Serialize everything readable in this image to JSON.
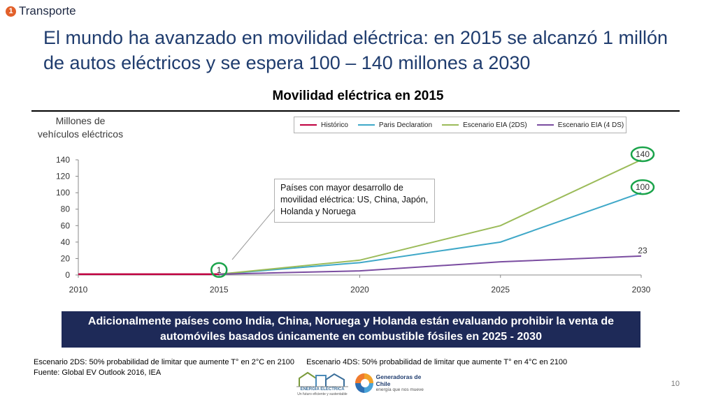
{
  "section": {
    "number": "1",
    "label": "Transporte"
  },
  "title": "El mundo ha avanzado en movilidad eléctrica: en 2015 se alcanzó 1 millón de autos eléctricos y se espera 100 – 140 millones a 2030",
  "chart_data": {
    "type": "line",
    "title": "Movilidad eléctrica en 2015",
    "ylabel_lines": [
      "Millones de",
      "vehículos eléctricos"
    ],
    "xlabel": "",
    "x": [
      2010,
      2015,
      2020,
      2025,
      2030
    ],
    "ylim": [
      0,
      140
    ],
    "yticks": [
      0,
      20,
      40,
      60,
      80,
      100,
      120,
      140
    ],
    "grid": false,
    "legend_position": "top-right",
    "series": [
      {
        "name": "Histórico",
        "color": "#c00040",
        "x": [
          2010,
          2015
        ],
        "values": [
          1,
          1
        ]
      },
      {
        "name": "Paris Declaration",
        "color": "#3fa8c8",
        "x": [
          2015,
          2020,
          2025,
          2030
        ],
        "values": [
          1,
          15,
          40,
          100
        ]
      },
      {
        "name": "Escenario EIA (2DS)",
        "color": "#9bbb59",
        "x": [
          2015,
          2020,
          2025,
          2030
        ],
        "values": [
          1,
          18,
          60,
          140
        ]
      },
      {
        "name": "Escenario EIA (4 DS)",
        "color": "#7a4ca0",
        "x": [
          2015,
          2020,
          2025,
          2030
        ],
        "values": [
          1,
          5,
          16,
          23
        ]
      }
    ],
    "data_labels": [
      {
        "text": "1",
        "x": 2015,
        "y": 1,
        "circled": true
      },
      {
        "text": "140",
        "x": 2030,
        "y": 140,
        "circled": true
      },
      {
        "text": "100",
        "x": 2030,
        "y": 100,
        "circled": true
      },
      {
        "text": "23",
        "x": 2030,
        "y": 23,
        "circled": false
      }
    ],
    "annotation": "Países con mayor desarrollo de movilidad eléctrica: US, China, Japón, Holanda y Noruega"
  },
  "banner": "Adicionalmente países como India, China, Noruega y Holanda están evaluando prohibir la venta de automóviles basados únicamente en combustible fósiles en 2025 - 2030",
  "notes": {
    "scenario_2ds": "Escenario 2DS: 50% probabilidad de limitar que aumente T° en 2°C en 2100",
    "scenario_4ds": "Escenario 4DS: 50% probabilidad de limitar que aumente T° en 4°C en 2100",
    "source": "Fuente: Global EV Outlook 2016, IEA"
  },
  "logos": {
    "energia_name": "ENERGÍA ELÉCTRICA",
    "energia_tag": "Un futuro eficiente y sustentable",
    "generadoras_name": "Generadoras de Chile",
    "generadoras_tag": "energía que nos mueve"
  },
  "page_number": "10",
  "colors": {
    "title": "#1f3c6e",
    "banner_bg": "#1e2a58",
    "tag_circle": "#e2602a",
    "highlight_circle": "#1aa34a"
  }
}
